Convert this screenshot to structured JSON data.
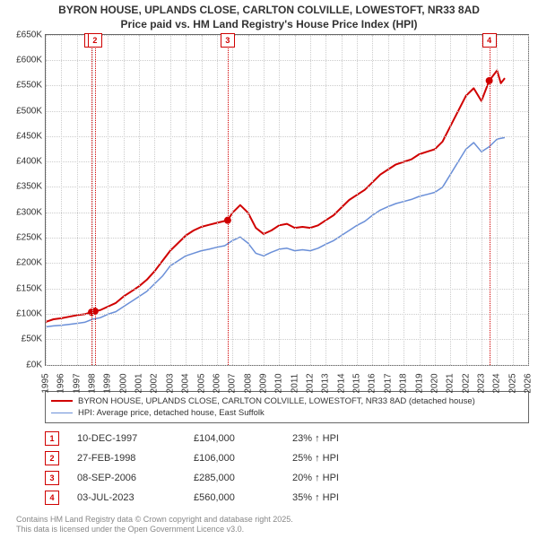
{
  "title_line1": "BYRON HOUSE, UPLANDS CLOSE, CARLTON COLVILLE, LOWESTOFT, NR33 8AD",
  "title_line2": "Price paid vs. HM Land Registry's House Price Index (HPI)",
  "chart": {
    "type": "line",
    "background_color": "#ffffff",
    "border_color": "#666666",
    "grid_color": "#cccccc",
    "x": {
      "min": 1995,
      "max": 2026,
      "step": 1
    },
    "y": {
      "min": 0,
      "max": 650000,
      "step": 50000,
      "tick_format": "£K"
    },
    "title_fontsize": 12,
    "axis_fontsize": 10,
    "series": [
      {
        "key": "paid",
        "label": "BYRON HOUSE, UPLANDS CLOSE, CARLTON COLVILLE, LOWESTOFT, NR33 8AD (detached house)",
        "color": "#d00000",
        "width": 2,
        "data": [
          [
            1995,
            85000
          ],
          [
            1995.5,
            90000
          ],
          [
            1996,
            92000
          ],
          [
            1996.5,
            95000
          ],
          [
            1997,
            98000
          ],
          [
            1997.5,
            100000
          ],
          [
            1997.94,
            104000
          ],
          [
            1998.16,
            106000
          ],
          [
            1998.5,
            108000
          ],
          [
            1999,
            115000
          ],
          [
            1999.5,
            122000
          ],
          [
            2000,
            135000
          ],
          [
            2000.5,
            145000
          ],
          [
            2001,
            155000
          ],
          [
            2001.5,
            168000
          ],
          [
            2002,
            185000
          ],
          [
            2002.5,
            205000
          ],
          [
            2003,
            225000
          ],
          [
            2003.5,
            240000
          ],
          [
            2004,
            255000
          ],
          [
            2004.5,
            265000
          ],
          [
            2005,
            272000
          ],
          [
            2005.5,
            276000
          ],
          [
            2006,
            280000
          ],
          [
            2006.69,
            285000
          ],
          [
            2007,
            300000
          ],
          [
            2007.5,
            315000
          ],
          [
            2008,
            300000
          ],
          [
            2008.5,
            270000
          ],
          [
            2009,
            258000
          ],
          [
            2009.5,
            265000
          ],
          [
            2010,
            275000
          ],
          [
            2010.5,
            278000
          ],
          [
            2011,
            270000
          ],
          [
            2011.5,
            272000
          ],
          [
            2012,
            270000
          ],
          [
            2012.5,
            275000
          ],
          [
            2013,
            285000
          ],
          [
            2013.5,
            295000
          ],
          [
            2014,
            310000
          ],
          [
            2014.5,
            325000
          ],
          [
            2015,
            335000
          ],
          [
            2015.5,
            345000
          ],
          [
            2016,
            360000
          ],
          [
            2016.5,
            375000
          ],
          [
            2017,
            385000
          ],
          [
            2017.5,
            395000
          ],
          [
            2018,
            400000
          ],
          [
            2018.5,
            405000
          ],
          [
            2019,
            415000
          ],
          [
            2019.5,
            420000
          ],
          [
            2020,
            425000
          ],
          [
            2020.5,
            440000
          ],
          [
            2021,
            470000
          ],
          [
            2021.5,
            500000
          ],
          [
            2022,
            530000
          ],
          [
            2022.5,
            545000
          ],
          [
            2023,
            520000
          ],
          [
            2023.5,
            560000
          ],
          [
            2024,
            580000
          ],
          [
            2024.25,
            555000
          ],
          [
            2024.5,
            565000
          ]
        ]
      },
      {
        "key": "hpi",
        "label": "HPI: Average price, detached house, East Suffolk",
        "color": "#6a8fd8",
        "width": 1.5,
        "data": [
          [
            1995,
            75000
          ],
          [
            1995.5,
            77000
          ],
          [
            1996,
            78000
          ],
          [
            1996.5,
            80000
          ],
          [
            1997,
            82000
          ],
          [
            1997.5,
            84000
          ],
          [
            1998,
            90000
          ],
          [
            1998.5,
            93000
          ],
          [
            1999,
            100000
          ],
          [
            1999.5,
            105000
          ],
          [
            2000,
            115000
          ],
          [
            2000.5,
            125000
          ],
          [
            2001,
            135000
          ],
          [
            2001.5,
            145000
          ],
          [
            2002,
            160000
          ],
          [
            2002.5,
            175000
          ],
          [
            2003,
            195000
          ],
          [
            2003.5,
            205000
          ],
          [
            2004,
            215000
          ],
          [
            2004.5,
            220000
          ],
          [
            2005,
            225000
          ],
          [
            2005.5,
            228000
          ],
          [
            2006,
            232000
          ],
          [
            2006.5,
            235000
          ],
          [
            2007,
            245000
          ],
          [
            2007.5,
            252000
          ],
          [
            2008,
            240000
          ],
          [
            2008.5,
            220000
          ],
          [
            2009,
            215000
          ],
          [
            2009.5,
            222000
          ],
          [
            2010,
            228000
          ],
          [
            2010.5,
            230000
          ],
          [
            2011,
            225000
          ],
          [
            2011.5,
            227000
          ],
          [
            2012,
            225000
          ],
          [
            2012.5,
            230000
          ],
          [
            2013,
            238000
          ],
          [
            2013.5,
            245000
          ],
          [
            2014,
            255000
          ],
          [
            2014.5,
            265000
          ],
          [
            2015,
            275000
          ],
          [
            2015.5,
            283000
          ],
          [
            2016,
            295000
          ],
          [
            2016.5,
            305000
          ],
          [
            2017,
            312000
          ],
          [
            2017.5,
            318000
          ],
          [
            2018,
            322000
          ],
          [
            2018.5,
            326000
          ],
          [
            2019,
            332000
          ],
          [
            2019.5,
            336000
          ],
          [
            2020,
            340000
          ],
          [
            2020.5,
            350000
          ],
          [
            2021,
            375000
          ],
          [
            2021.5,
            400000
          ],
          [
            2022,
            425000
          ],
          [
            2022.5,
            438000
          ],
          [
            2023,
            420000
          ],
          [
            2023.5,
            430000
          ],
          [
            2024,
            445000
          ],
          [
            2024.5,
            448000
          ]
        ]
      }
    ],
    "markers": [
      {
        "n": "1",
        "year": 1997.94,
        "price": 104000
      },
      {
        "n": "2",
        "year": 1998.16,
        "price": 106000
      },
      {
        "n": "3",
        "year": 2006.69,
        "price": 285000
      },
      {
        "n": "4",
        "year": 2023.5,
        "price": 560000
      }
    ],
    "marker_dot_color": "#d00000",
    "marker_line_color": "#d00000"
  },
  "legend": {
    "items": [
      {
        "color": "#d00000",
        "width": 2,
        "label_key": "chart.series.0.label"
      },
      {
        "color": "#6a8fd8",
        "width": 1.5,
        "label_key": "chart.series.1.label"
      }
    ]
  },
  "table": {
    "rows": [
      {
        "n": "1",
        "date": "10-DEC-1997",
        "price": "£104,000",
        "hpi": "23% ↑ HPI"
      },
      {
        "n": "2",
        "date": "27-FEB-1998",
        "price": "£106,000",
        "hpi": "25% ↑ HPI"
      },
      {
        "n": "3",
        "date": "08-SEP-2006",
        "price": "£285,000",
        "hpi": "20% ↑ HPI"
      },
      {
        "n": "4",
        "date": "03-JUL-2023",
        "price": "£560,000",
        "hpi": "35% ↑ HPI"
      }
    ]
  },
  "footer": {
    "line1": "Contains HM Land Registry data © Crown copyright and database right 2025.",
    "line2": "This data is licensed under the Open Government Licence v3.0."
  }
}
